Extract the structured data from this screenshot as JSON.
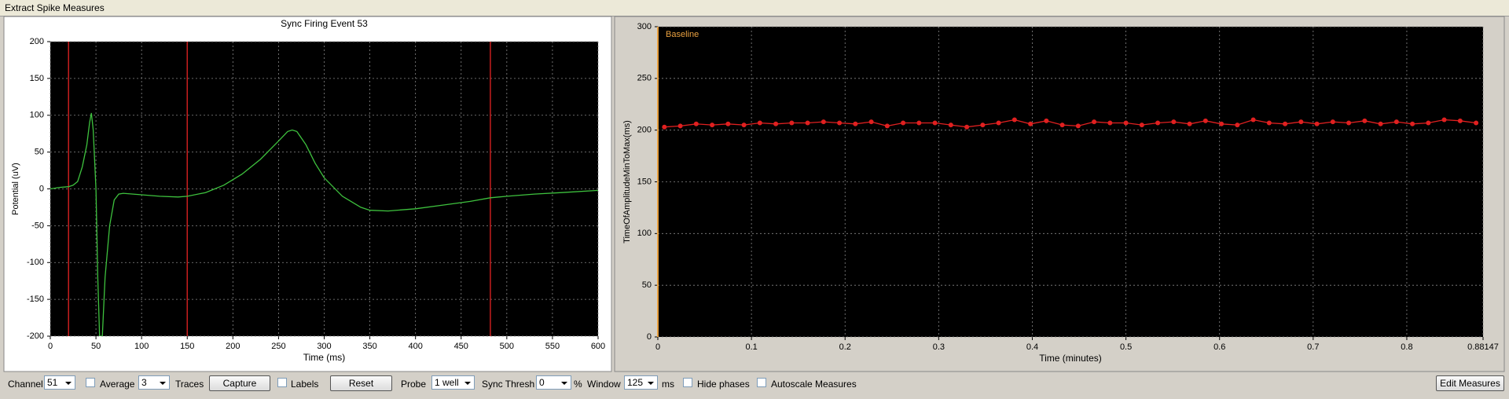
{
  "window": {
    "title": "Extract Spike Measures"
  },
  "chart_data": [
    {
      "type": "line",
      "title": "Sync Firing Event 53",
      "xlabel": "Time (ms)",
      "ylabel": "Potential (uV)",
      "xlim": [
        0,
        600
      ],
      "xticks": [
        0,
        50,
        100,
        150,
        200,
        250,
        300,
        350,
        400,
        450,
        500,
        550,
        600
      ],
      "ylim": [
        -200,
        200
      ],
      "yticks": [
        -200,
        -150,
        -100,
        -50,
        0,
        50,
        100,
        150,
        200
      ],
      "grid": true,
      "color": "#3ec23e",
      "x": [
        0,
        10,
        20,
        25,
        30,
        35,
        40,
        43,
        45,
        47,
        50,
        52,
        54,
        57,
        60,
        65,
        70,
        75,
        80,
        100,
        120,
        140,
        150,
        170,
        190,
        210,
        230,
        250,
        260,
        265,
        270,
        280,
        290,
        300,
        320,
        340,
        350,
        370,
        400,
        430,
        460,
        482,
        500,
        530,
        560,
        600
      ],
      "values": [
        0,
        2,
        3,
        5,
        10,
        30,
        60,
        90,
        103,
        80,
        0,
        -120,
        -200,
        -200,
        -120,
        -50,
        -15,
        -7,
        -6,
        -8,
        -10,
        -11,
        -10,
        -5,
        5,
        20,
        40,
        65,
        78,
        80,
        78,
        60,
        35,
        15,
        -10,
        -25,
        -29,
        -30,
        -27,
        -22,
        -17,
        -12,
        -10,
        -7,
        -5,
        -2
      ],
      "vlines": [
        20,
        150,
        482
      ],
      "vline_color": "#c81e1e"
    },
    {
      "type": "line",
      "xlabel": "Time (minutes)",
      "ylabel": "TimeOfAmplitudeMinToMax(ms)",
      "xlim": [
        0,
        0.88147
      ],
      "xticks": [
        0,
        0.1,
        0.2,
        0.3,
        0.4,
        0.5,
        0.6,
        0.7,
        0.8,
        0.88147
      ],
      "ylim": [
        0,
        300
      ],
      "yticks": [
        0,
        50,
        100,
        150,
        200,
        250,
        300
      ],
      "grid": true,
      "color": "#e02020",
      "markers": true,
      "x": [
        0.007,
        0.024,
        0.041,
        0.058,
        0.075,
        0.092,
        0.109,
        0.126,
        0.143,
        0.16,
        0.177,
        0.194,
        0.211,
        0.228,
        0.245,
        0.262,
        0.279,
        0.296,
        0.313,
        0.33,
        0.347,
        0.364,
        0.381,
        0.398,
        0.415,
        0.432,
        0.449,
        0.466,
        0.483,
        0.5,
        0.517,
        0.534,
        0.551,
        0.568,
        0.585,
        0.602,
        0.619,
        0.636,
        0.653,
        0.67,
        0.687,
        0.704,
        0.721,
        0.738,
        0.755,
        0.772,
        0.789,
        0.806,
        0.823,
        0.84,
        0.857,
        0.874
      ],
      "values": [
        203,
        204,
        206,
        205,
        206,
        205,
        207,
        206,
        207,
        207,
        208,
        207,
        206,
        208,
        204,
        207,
        207,
        207,
        205,
        203,
        205,
        207,
        210,
        206,
        209,
        205,
        204,
        208,
        207,
        207,
        205,
        207,
        208,
        206,
        209,
        206,
        205,
        210,
        207,
        206,
        208,
        206,
        208,
        207,
        209,
        206,
        208,
        206,
        207,
        210,
        209,
        207
      ],
      "annotation": {
        "text": "Baseline",
        "x": 0,
        "color": "#e8a040"
      }
    }
  ],
  "controls": {
    "channel_label": "Channel",
    "channel": "51",
    "average": "Average",
    "traces_count": "3",
    "traces": "Traces",
    "capture": "Capture",
    "labels": "Labels",
    "reset": "Reset",
    "probe_label": "Probe",
    "probe": "1 well",
    "sync_thresh_label": "Sync Thresh",
    "sync_thresh": "0",
    "percent": "%",
    "window_label": "Window",
    "window": "125",
    "ms": "ms",
    "hide_phases": "Hide phases",
    "autoscale": "Autoscale Measures",
    "edit_measures": "Edit Measures"
  }
}
